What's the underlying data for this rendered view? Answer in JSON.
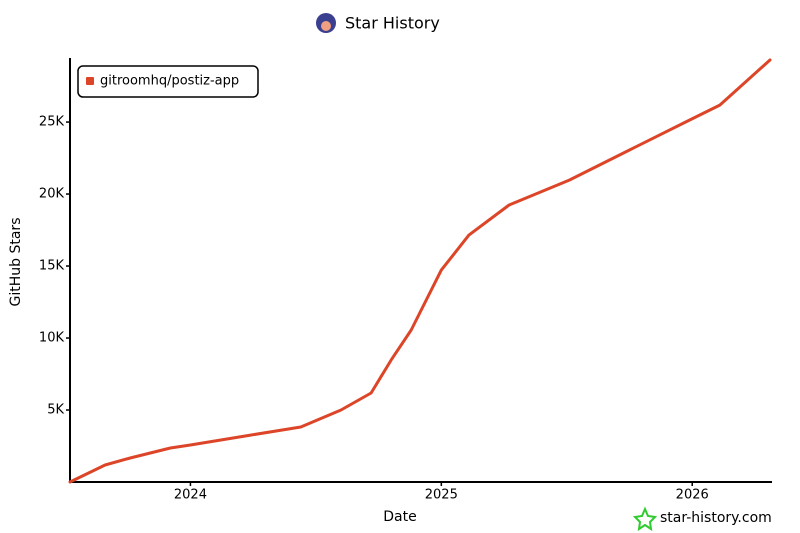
{
  "chart_data": {
    "type": "line",
    "title": "Star History",
    "xlabel": "Date",
    "ylabel": "GitHub Stars",
    "x": [
      2023.52,
      2023.66,
      2023.76,
      2023.92,
      2024.0,
      2024.24,
      2024.44,
      2024.6,
      2024.72,
      2024.8,
      2024.88,
      2025.0,
      2025.11,
      2025.27,
      2025.51,
      2025.75,
      2025.99,
      2026.11,
      2026.31
    ],
    "series": [
      {
        "name": "gitroomhq/postiz-app",
        "color": "#dd4528",
        "values": [
          0,
          1180,
          1670,
          2360,
          2570,
          3260,
          3820,
          5000,
          6180,
          8470,
          10560,
          14720,
          17150,
          19240,
          20970,
          23060,
          25140,
          26180,
          29310
        ]
      }
    ],
    "xlim": [
      2023.52,
      2026.31
    ],
    "xticks": [
      2024,
      2025,
      2026
    ],
    "ylim": [
      0,
      29310
    ],
    "yticks": [
      {
        "value": 5000,
        "label": "5K"
      },
      {
        "value": 10000,
        "label": "10K"
      },
      {
        "value": 15000,
        "label": "15K"
      },
      {
        "value": 20000,
        "label": "20K"
      },
      {
        "value": 25000,
        "label": "25K"
      }
    ],
    "legend": "top-left",
    "watermark": "star-history.com"
  }
}
